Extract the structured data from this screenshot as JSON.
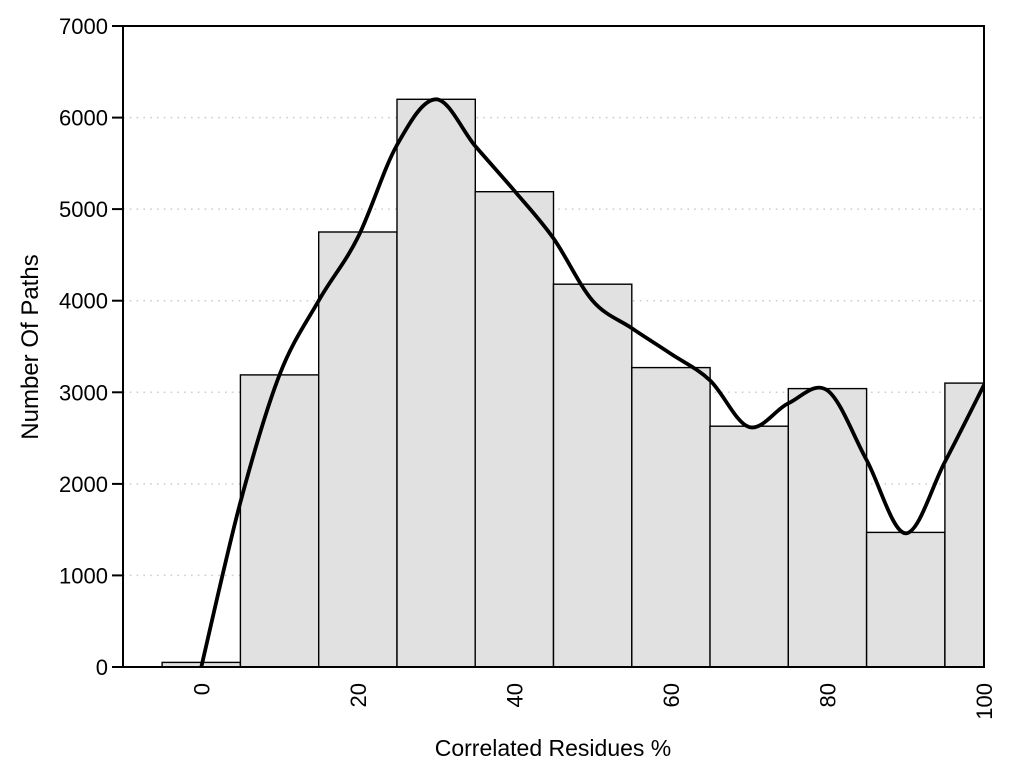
{
  "chart_data": {
    "type": "bar",
    "subtype": "histogram-with-smooth-curve",
    "title": "",
    "xlabel": "Correlated Residues %",
    "ylabel": "Number Of Paths",
    "xlim": [
      -10,
      100
    ],
    "ylim": [
      0,
      7000
    ],
    "x_ticks": [
      0,
      20,
      40,
      60,
      80,
      100
    ],
    "y_ticks": [
      0,
      1000,
      2000,
      3000,
      4000,
      5000,
      6000,
      7000
    ],
    "grid": {
      "horizontal_dotted_at": [
        1000,
        2000,
        3000,
        4000,
        5000,
        6000
      ]
    },
    "legend": "none",
    "bars": [
      {
        "x0": -5,
        "x1": 5,
        "center": 0,
        "value": 50
      },
      {
        "x0": 5,
        "x1": 15,
        "center": 10,
        "value": 3190
      },
      {
        "x0": 15,
        "x1": 25,
        "center": 20,
        "value": 4750
      },
      {
        "x0": 25,
        "x1": 35,
        "center": 30,
        "value": 6200
      },
      {
        "x0": 35,
        "x1": 45,
        "center": 40,
        "value": 5190
      },
      {
        "x0": 45,
        "x1": 55,
        "center": 50,
        "value": 4180
      },
      {
        "x0": 55,
        "x1": 65,
        "center": 60,
        "value": 3270
      },
      {
        "x0": 65,
        "x1": 75,
        "center": 70,
        "value": 2630
      },
      {
        "x0": 75,
        "x1": 85,
        "center": 80,
        "value": 3040
      },
      {
        "x0": 85,
        "x1": 95,
        "center": 90,
        "value": 1470
      },
      {
        "x0": 95,
        "x1": 100,
        "center": 100,
        "value": 3100
      }
    ],
    "series": [
      {
        "name": "smooth-fit-curve",
        "type": "line",
        "points": [
          [
            0,
            0
          ],
          [
            5,
            1800
          ],
          [
            10,
            3190
          ],
          [
            15,
            4000
          ],
          [
            20,
            4690
          ],
          [
            25,
            5700
          ],
          [
            30,
            6200
          ],
          [
            35,
            5690
          ],
          [
            40,
            5200
          ],
          [
            45,
            4680
          ],
          [
            50,
            4000
          ],
          [
            55,
            3700
          ],
          [
            60,
            3420
          ],
          [
            65,
            3130
          ],
          [
            70,
            2620
          ],
          [
            75,
            2880
          ],
          [
            80,
            3020
          ],
          [
            85,
            2260
          ],
          [
            90,
            1460
          ],
          [
            95,
            2240
          ],
          [
            100,
            3080
          ]
        ]
      }
    ],
    "colors": {
      "background": "#ffffff",
      "bar_fill": "#e1e1e1",
      "bar_border": "#000000",
      "curve": "#000000",
      "grid": "#cccccc",
      "axis": "#000000",
      "text": "#000000"
    }
  }
}
